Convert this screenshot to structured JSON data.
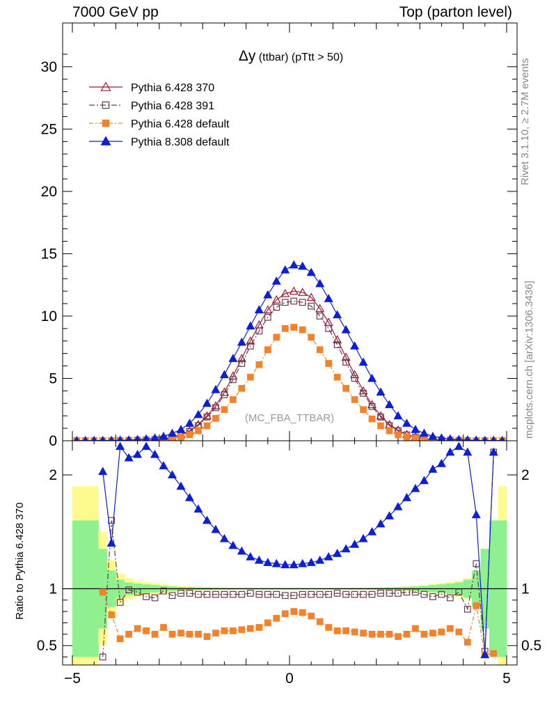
{
  "header": {
    "left": "7000 GeV pp",
    "right": "Top (parton level)"
  },
  "side_text": {
    "top": "Rivet 3.1.10, ≥ 2.7M events",
    "bottom": "mcplots.cern.ch [arXiv:1306.3436]"
  },
  "chart_data": {
    "type": "line",
    "title_symbol": "Δy",
    "title_text": " (ttbar) (pTtt > 50)",
    "watermark": "(MC_FBA_TTBAR)",
    "xlim": [
      -5,
      5
    ],
    "ylim": [
      0,
      32
    ],
    "xticks": [
      -5,
      0,
      5
    ],
    "yticks": [
      0,
      5,
      10,
      15,
      20,
      25,
      30
    ],
    "x": [
      -4.9,
      -4.7,
      -4.5,
      -4.3,
      -4.1,
      -3.9,
      -3.7,
      -3.5,
      -3.3,
      -3.1,
      -2.9,
      -2.7,
      -2.5,
      -2.3,
      -2.1,
      -1.9,
      -1.7,
      -1.5,
      -1.3,
      -1.1,
      -0.9,
      -0.7,
      -0.5,
      -0.3,
      -0.1,
      0.1,
      0.3,
      0.5,
      0.7,
      0.9,
      1.1,
      1.3,
      1.5,
      1.7,
      1.9,
      2.1,
      2.3,
      2.5,
      2.7,
      2.9,
      3.1,
      3.3,
      3.5,
      3.7,
      3.9,
      4.1,
      4.3,
      4.5,
      4.7,
      4.9
    ],
    "series": [
      {
        "name": "Pythia 6.428 370",
        "color": "#9b1b30",
        "marker": "triangle-open",
        "dash": "",
        "values": [
          0.01,
          0.01,
          0.01,
          0.01,
          0.01,
          0.02,
          0.03,
          0.05,
          0.07,
          0.1,
          0.15,
          0.3,
          0.5,
          0.8,
          1.3,
          2.0,
          2.8,
          3.9,
          5.2,
          6.6,
          8.0,
          9.3,
          10.5,
          11.3,
          11.8,
          12.0,
          11.9,
          11.5,
          10.6,
          9.5,
          8.1,
          6.7,
          5.3,
          4.0,
          2.9,
          2.0,
          1.3,
          0.85,
          0.5,
          0.3,
          0.15,
          0.1,
          0.07,
          0.05,
          0.03,
          0.02,
          0.01,
          0.01,
          0.01,
          0.01
        ]
      },
      {
        "name": "Pythia 6.428 391",
        "color": "#6b3a4a",
        "marker": "square-open",
        "dash": "8 3 2 3",
        "values": [
          0.01,
          0.01,
          0.01,
          0.01,
          0.01,
          0.02,
          0.03,
          0.05,
          0.07,
          0.1,
          0.14,
          0.28,
          0.47,
          0.76,
          1.22,
          1.9,
          2.65,
          3.7,
          4.9,
          6.2,
          7.6,
          8.8,
          9.9,
          10.7,
          11.1,
          11.2,
          11.1,
          10.8,
          10.0,
          9.0,
          7.7,
          6.3,
          5.0,
          3.8,
          2.75,
          1.9,
          1.22,
          0.8,
          0.47,
          0.28,
          0.14,
          0.1,
          0.07,
          0.05,
          0.03,
          0.02,
          0.01,
          0.01,
          0.01,
          0.01
        ]
      },
      {
        "name": "Pythia 6.428 default",
        "color": "#f5822a",
        "marker": "square-filled",
        "dash": "6 3 2 3",
        "values": [
          0.01,
          0.01,
          0.01,
          0.01,
          0.01,
          0.01,
          0.02,
          0.03,
          0.04,
          0.06,
          0.09,
          0.18,
          0.3,
          0.48,
          0.8,
          1.2,
          1.8,
          2.5,
          3.3,
          4.2,
          5.1,
          6.1,
          7.3,
          8.3,
          9.0,
          9.1,
          8.9,
          8.3,
          7.3,
          6.2,
          5.1,
          4.2,
          3.3,
          2.5,
          1.75,
          1.2,
          0.8,
          0.48,
          0.3,
          0.18,
          0.09,
          0.06,
          0.04,
          0.03,
          0.02,
          0.01,
          0.01,
          0.01,
          0.01,
          0.01
        ]
      },
      {
        "name": "Pythia 8.308 default",
        "color": "#0b1fd6",
        "marker": "triangle-filled",
        "dash": "",
        "values": [
          0.01,
          0.01,
          0.02,
          0.02,
          0.02,
          0.04,
          0.06,
          0.1,
          0.15,
          0.22,
          0.35,
          0.6,
          0.9,
          1.4,
          2.1,
          3.0,
          4.1,
          5.3,
          6.6,
          7.9,
          9.2,
          10.5,
          11.7,
          12.8,
          13.7,
          14.1,
          14.0,
          13.5,
          12.6,
          11.4,
          10.1,
          8.9,
          7.6,
          6.3,
          5.0,
          3.9,
          2.9,
          2.0,
          1.4,
          0.9,
          0.6,
          0.35,
          0.22,
          0.15,
          0.1,
          0.06,
          0.04,
          0.02,
          0.02,
          0.01
        ]
      }
    ],
    "ratio": {
      "ylabel": "Ratio to Pythia 6.428 370",
      "ylim": [
        0.33,
        2.3
      ],
      "yticks": [
        0.5,
        1,
        2
      ],
      "band_outer_halfwidth": [
        0.9,
        0.9,
        0.9,
        0.5,
        0.25,
        0.13,
        0.09,
        0.07,
        0.06,
        0.05,
        0.04,
        0.03,
        0.025,
        0.02,
        0.018,
        0.015,
        0.013,
        0.012,
        0.011,
        0.01,
        0.01,
        0.01,
        0.01,
        0.01,
        0.01,
        0.01,
        0.01,
        0.01,
        0.01,
        0.01,
        0.01,
        0.01,
        0.01,
        0.011,
        0.012,
        0.013,
        0.015,
        0.018,
        0.02,
        0.025,
        0.03,
        0.04,
        0.05,
        0.06,
        0.07,
        0.09,
        0.13,
        0.25,
        0.5,
        0.9
      ],
      "band_inner_halfwidth": [
        0.6,
        0.6,
        0.6,
        0.35,
        0.16,
        0.08,
        0.055,
        0.045,
        0.038,
        0.032,
        0.025,
        0.02,
        0.016,
        0.013,
        0.011,
        0.01,
        0.008,
        0.007,
        0.007,
        0.006,
        0.006,
        0.006,
        0.006,
        0.006,
        0.006,
        0.006,
        0.006,
        0.006,
        0.006,
        0.006,
        0.006,
        0.006,
        0.007,
        0.007,
        0.008,
        0.01,
        0.011,
        0.013,
        0.016,
        0.02,
        0.025,
        0.032,
        0.038,
        0.045,
        0.055,
        0.08,
        0.16,
        0.35,
        0.6,
        0.6
      ],
      "series": [
        {
          "name": "Pythia 6.428 391",
          "values": [
            null,
            null,
            null,
            0.4,
            1.6,
            0.88,
            0.99,
            0.97,
            0.93,
            0.92,
            0.98,
            0.94,
            0.96,
            0.96,
            0.95,
            0.95,
            0.95,
            0.95,
            0.95,
            0.95,
            0.96,
            0.95,
            0.95,
            0.95,
            0.94,
            0.94,
            0.95,
            0.95,
            0.95,
            0.95,
            0.96,
            0.95,
            0.95,
            0.95,
            0.95,
            0.96,
            0.96,
            0.96,
            0.97,
            0.97,
            0.95,
            0.93,
            0.95,
            0.92,
            0.97,
            0.82,
            1.22,
            0.45,
            2.2,
            null
          ]
        },
        {
          "name": "Pythia 6.428 default",
          "values": [
            null,
            null,
            null,
            0.97,
            0.77,
            0.56,
            0.6,
            0.65,
            0.63,
            0.6,
            0.66,
            0.6,
            0.61,
            0.6,
            0.6,
            0.58,
            0.61,
            0.63,
            0.63,
            0.64,
            0.65,
            0.66,
            0.7,
            0.74,
            0.78,
            0.8,
            0.79,
            0.76,
            0.71,
            0.66,
            0.63,
            0.63,
            0.62,
            0.61,
            0.6,
            0.6,
            0.6,
            0.58,
            0.6,
            0.65,
            0.6,
            0.61,
            0.62,
            0.65,
            0.62,
            0.53,
            0.85,
            0.42,
            0.43,
            null
          ]
        },
        {
          "name": "Pythia 8.308 default",
          "values": [
            null,
            null,
            null,
            2.03,
            1.4,
            2.25,
            2.15,
            2.18,
            2.25,
            2.18,
            2.08,
            2.0,
            1.9,
            1.8,
            1.7,
            1.6,
            1.52,
            1.44,
            1.38,
            1.33,
            1.28,
            1.25,
            1.23,
            1.22,
            1.21,
            1.21,
            1.22,
            1.23,
            1.25,
            1.28,
            1.31,
            1.35,
            1.39,
            1.44,
            1.5,
            1.57,
            1.64,
            1.72,
            1.8,
            1.88,
            1.95,
            2.05,
            2.1,
            2.2,
            2.25,
            2.2,
            1.65,
            0.42,
            2.2,
            null
          ]
        }
      ]
    },
    "legend_position": "top-left"
  }
}
